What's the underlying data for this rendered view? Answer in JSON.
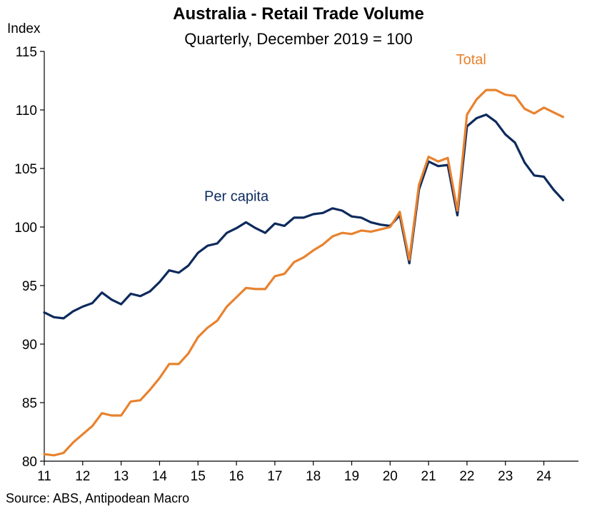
{
  "chart_data": {
    "type": "line",
    "title": "Australia - Retail Trade Volume",
    "subtitle": "Quarterly, December 2019 = 100",
    "ylabel": "Index",
    "xlabel": "",
    "ylim": [
      80,
      115
    ],
    "yticks": [
      80,
      85,
      90,
      95,
      100,
      105,
      110,
      115
    ],
    "xlim": [
      2011.0,
      2024.9
    ],
    "xticks": [
      {
        "label": "11",
        "x": 2011
      },
      {
        "label": "12",
        "x": 2012
      },
      {
        "label": "13",
        "x": 2013
      },
      {
        "label": "14",
        "x": 2014
      },
      {
        "label": "15",
        "x": 2015
      },
      {
        "label": "16",
        "x": 2016
      },
      {
        "label": "17",
        "x": 2017
      },
      {
        "label": "18",
        "x": 2018
      },
      {
        "label": "19",
        "x": 2019
      },
      {
        "label": "20",
        "x": 2020
      },
      {
        "label": "21",
        "x": 2021
      },
      {
        "label": "22",
        "x": 2022
      },
      {
        "label": "23",
        "x": 2023
      },
      {
        "label": "24",
        "x": 2024
      }
    ],
    "x_start": 2011.0,
    "x_step": 0.25,
    "series": [
      {
        "name": "Per capita",
        "color": "#0d2a5c",
        "values": [
          92.7,
          92.3,
          92.2,
          92.8,
          93.2,
          93.5,
          94.4,
          93.8,
          93.4,
          94.3,
          94.1,
          94.5,
          95.3,
          96.3,
          96.1,
          96.7,
          97.8,
          98.4,
          98.6,
          99.5,
          99.9,
          100.4,
          99.9,
          99.5,
          100.3,
          100.1,
          100.8,
          100.8,
          101.1,
          101.2,
          101.6,
          101.4,
          100.9,
          100.8,
          100.4,
          100.2,
          100.1,
          101.0,
          96.9,
          103.2,
          105.6,
          105.2,
          105.3,
          101.0,
          108.6,
          109.3,
          109.6,
          109.0,
          107.9,
          107.2,
          105.5,
          104.4,
          104.3,
          103.2,
          102.3
        ]
      },
      {
        "name": "Total",
        "color": "#e8822e",
        "values": [
          80.6,
          80.5,
          80.7,
          81.6,
          82.3,
          83.0,
          84.1,
          83.9,
          83.9,
          85.1,
          85.2,
          86.1,
          87.1,
          88.3,
          88.3,
          89.2,
          90.6,
          91.4,
          92.0,
          93.2,
          94.0,
          94.8,
          94.7,
          94.7,
          95.8,
          96.0,
          97.0,
          97.4,
          98.0,
          98.5,
          99.2,
          99.5,
          99.4,
          99.7,
          99.6,
          99.8,
          100.0,
          101.3,
          97.2,
          103.6,
          106.0,
          105.6,
          105.9,
          101.4,
          109.6,
          110.9,
          111.7,
          111.7,
          111.3,
          111.2,
          110.1,
          109.7,
          110.2,
          109.8,
          109.4
        ]
      }
    ],
    "annotations": [
      {
        "text": "Per capita",
        "series": "Per capita"
      },
      {
        "text": "Total",
        "series": "Total"
      }
    ],
    "source": "Source: ABS, Antipodean Macro"
  }
}
